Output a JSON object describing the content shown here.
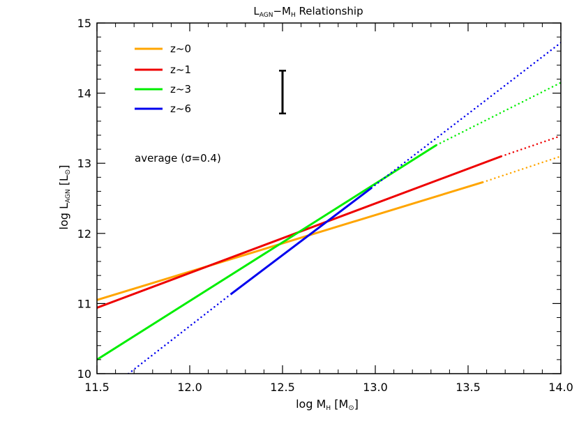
{
  "chart_data": {
    "type": "line",
    "title": {
      "l_main": "L",
      "l_sub": "AGN",
      "dash": "−M",
      "m_sub": "H",
      "rest": " Relationship"
    },
    "xlabel": {
      "main": "log M",
      "sub": "H",
      "unit": " [M",
      "unit_sub": "⊙",
      "close": "]"
    },
    "ylabel": {
      "main": "log L",
      "sub": "AGN",
      "unit": " [L",
      "unit_sub": "⊙",
      "close": "]"
    },
    "xlim": [
      11.5,
      14.0
    ],
    "ylim": [
      10,
      15
    ],
    "xticks": [
      11.5,
      12.0,
      12.5,
      13.0,
      13.5,
      14.0
    ],
    "xtick_labels": [
      "11.5",
      "12.0",
      "12.5",
      "13.0",
      "13.5",
      "14.0"
    ],
    "yticks": [
      10,
      11,
      12,
      13,
      14,
      15
    ],
    "ytick_labels": [
      "10",
      "11",
      "12",
      "13",
      "14",
      "15"
    ],
    "grid": false,
    "legend_position": "top-left",
    "series": [
      {
        "name": "z~0",
        "color": "#FFA500",
        "solid": [
          [
            11.5,
            11.05
          ],
          [
            13.58,
            12.73
          ]
        ],
        "dotted": [
          [
            13.58,
            12.73
          ],
          [
            14.0,
            13.1
          ]
        ]
      },
      {
        "name": "z~1",
        "color": "#EE0000",
        "solid": [
          [
            11.5,
            10.94
          ],
          [
            13.68,
            13.1
          ]
        ],
        "dotted": [
          [
            13.68,
            13.1
          ],
          [
            14.0,
            13.39
          ]
        ]
      },
      {
        "name": "z~3",
        "color": "#00EE00",
        "solid": [
          [
            11.5,
            10.2
          ],
          [
            13.33,
            13.26
          ]
        ],
        "dotted": [
          [
            13.33,
            13.26
          ],
          [
            14.0,
            14.15
          ]
        ]
      },
      {
        "name": "z~6",
        "color": "#0000EE",
        "dotted_low": [
          [
            11.67,
            10.0
          ],
          [
            12.22,
            11.13
          ]
        ],
        "solid": [
          [
            12.22,
            11.13
          ],
          [
            12.98,
            12.65
          ]
        ],
        "dotted": [
          [
            12.98,
            12.65
          ],
          [
            14.0,
            14.72
          ]
        ]
      }
    ],
    "error_bar": {
      "x": 12.5,
      "y_low": 13.71,
      "y_high": 14.32
    },
    "annotation": "average (σ=0.4)"
  }
}
